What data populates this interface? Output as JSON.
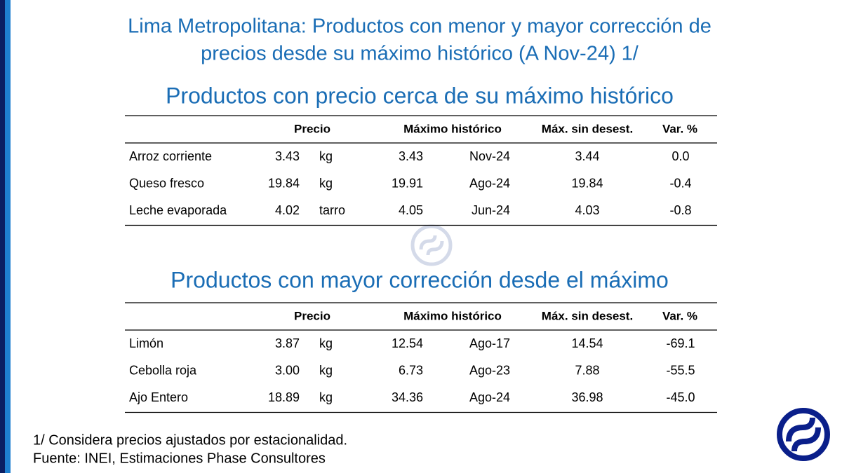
{
  "title": "Lima Metropolitana: Productos con menor y mayor corrección de precios desde su máximo histórico (A Nov-24) 1/",
  "title_lines": [
    "Lima Metropolitana: Productos con menor y mayor corrección de",
    "precios desde su máximo histórico (A Nov-24) 1/"
  ],
  "tables": [
    {
      "subtitle": "Productos con precio cerca de su máximo histórico",
      "header": [
        "Precio",
        "Máximo histórico",
        "Máx. sin desest.",
        "Var. %"
      ],
      "rows": [
        [
          "Arroz corriente",
          "3.43",
          "kg",
          "3.43",
          "Nov-24",
          "3.44",
          "0.0"
        ],
        [
          "Queso fresco",
          "19.84",
          "kg",
          "19.91",
          "Ago-24",
          "19.84",
          "-0.4"
        ],
        [
          "Leche evaporada",
          "4.02",
          "tarro",
          "4.05",
          "Jun-24",
          "4.03",
          "-0.8"
        ]
      ]
    },
    {
      "subtitle": "Productos con mayor corrección desde el máximo",
      "header": [
        "Precio",
        "Máximo histórico",
        "Máx. sin desest.",
        "Var. %"
      ],
      "rows": [
        [
          "Limón",
          "3.87",
          "kg",
          "12.54",
          "Ago-17",
          "14.54",
          "-69.1"
        ],
        [
          "Cebolla roja",
          "3.00",
          "kg",
          "6.73",
          "Ago-23",
          "7.88",
          "-55.5"
        ],
        [
          "Ajo Entero",
          "18.89",
          "kg",
          "34.36",
          "Ago-24",
          "36.98",
          "-45.0"
        ]
      ]
    }
  ],
  "footnotes": [
    "1/ Considera precios ajustados por estacionalidad.",
    "Fuente: INEI, Estimaciones Phase Consultores"
  ]
}
